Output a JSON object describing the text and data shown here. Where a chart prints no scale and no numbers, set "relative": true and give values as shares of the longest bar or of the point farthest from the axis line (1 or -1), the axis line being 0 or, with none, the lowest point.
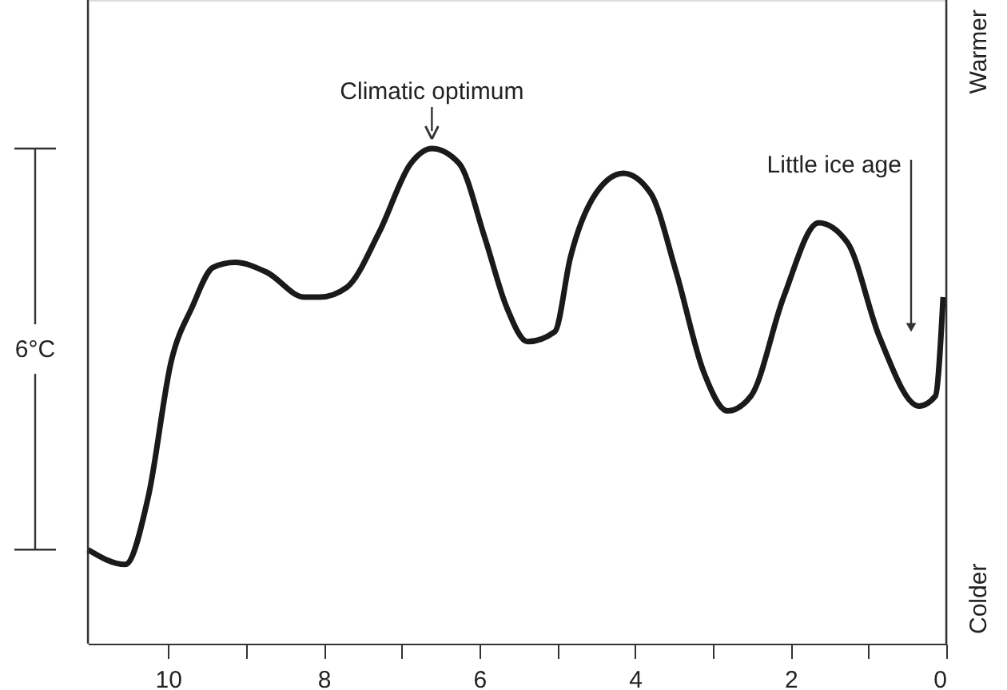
{
  "chart_data": {
    "type": "line",
    "relative": true,
    "color": "#1a1a1a",
    "x": [
      11.03,
      10.55,
      10.25,
      9.96,
      9.69,
      9.42,
      9.14,
      8.73,
      8.25,
      8.05,
      7.7,
      7.29,
      6.88,
      6.61,
      6.26,
      5.93,
      5.65,
      5.38,
      5.03,
      4.83,
      4.5,
      4.15,
      3.8,
      3.47,
      3.12,
      2.81,
      2.51,
      2.09,
      1.64,
      1.27,
      0.86,
      0.35,
      0.14,
      0.04
    ],
    "values": [
      0.19,
      0.16,
      0.3,
      0.57,
      0.68,
      0.76,
      0.77,
      0.75,
      0.7,
      0.7,
      0.72,
      0.83,
      0.97,
      1.0,
      0.97,
      0.82,
      0.68,
      0.61,
      0.63,
      0.78,
      0.91,
      0.95,
      0.91,
      0.75,
      0.55,
      0.47,
      0.5,
      0.7,
      0.85,
      0.81,
      0.62,
      0.48,
      0.5,
      0.7
    ],
    "xlim": [
      11.03,
      0
    ],
    "xticks": [
      10,
      {
        "value": 9,
        "label": null
      },
      8,
      {
        "value": 7,
        "label": null
      },
      6,
      {
        "value": 5,
        "label": null
      },
      4,
      {
        "value": 3,
        "label": null
      },
      2,
      {
        "value": 1,
        "label": null
      },
      0
    ],
    "grid": false,
    "marker": "none",
    "line_style": "solid",
    "annotations": [
      {
        "text": "Climatic optimum",
        "x": 6.61,
        "y": 1.0
      },
      "Little ice age",
      "6°C",
      "Warmer",
      "Colder"
    ]
  }
}
